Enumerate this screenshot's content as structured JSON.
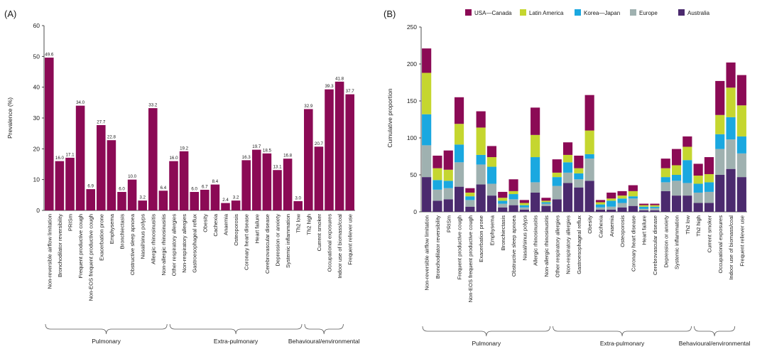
{
  "colors": {
    "bar_a": "#8b0a55",
    "usa_canada": "#8b0a55",
    "latin_america": "#c5d62f",
    "korea_japan": "#1aa8e0",
    "europe": "#9fb1b0",
    "australia": "#4b2a6e",
    "axis": "#222222"
  },
  "groups": [
    {
      "label": "Pulmonary",
      "from": 0,
      "to": 11
    },
    {
      "label": "Extra-pulmonary",
      "from": 12,
      "to": 24
    },
    {
      "label": "Behavioural/environmental",
      "from": 25,
      "to": 28
    }
  ],
  "chart_data": [
    {
      "panel": "(A)",
      "type": "bar",
      "ylabel": "Prevalence (%)",
      "ylim": [
        0,
        60
      ],
      "yticks": [
        0,
        10,
        20,
        30,
        40,
        50,
        60
      ],
      "grid": false,
      "categories": [
        "Non-reversible airflow limitation",
        "Bronchodilator reversibility",
        "PRISm",
        "Frequent productive cough",
        "Non-EOS frequent productive cough",
        "Exacerbation prone",
        "Emphysema",
        "Bronchiectasis",
        "Obstructive sleep apnoea",
        "Nasal/sinus polyps",
        "Allergic rhinosinusitis",
        "Non-allergic rhinosinusitis",
        "Other respiratory allergies",
        "Non-respiratory allergies",
        "Gastroesophageal reflux",
        "Obesity",
        "Cachexia",
        "Anaemia",
        "Osteoporosis",
        "Coronary heart disease",
        "Heart failure",
        "Cerebrovascular disease",
        "Depression or anxiety",
        "Systemic inflammation",
        "Th2 low",
        "Th2 high",
        "Current smoker",
        "Occupational exposures",
        "Indoor use of biomass/coal",
        "Frequent reliever use"
      ],
      "values": [
        49.6,
        16.0,
        17.1,
        34.0,
        6.9,
        27.7,
        22.8,
        6.0,
        10.0,
        3.2,
        33.2,
        6.4,
        16.0,
        19.2,
        6.0,
        6.7,
        8.4,
        2.4,
        3.2,
        16.3,
        19.7,
        18.5,
        13.1,
        16.8,
        3.0,
        32.9,
        20.7,
        39.3,
        41.8,
        37.7
      ],
      "labels": [
        "49.6",
        "16.0",
        "17.1",
        "34.0",
        "6.9",
        "27.7",
        "22.8",
        "6.0",
        "10.0",
        "3.2",
        "33.2",
        "6.4",
        "16.0",
        "19.2",
        "6.0",
        "6.7",
        "8.4",
        "2.4",
        "3.2",
        "16.3",
        "19.7",
        "18.5",
        "13.1",
        "16.8",
        "3.0",
        "32.9",
        "20.7",
        "39.3",
        "41.8",
        "37.7"
      ]
    },
    {
      "panel": "(B)",
      "type": "bar",
      "stacked": true,
      "ylabel": "Cumulative proportion",
      "ylim": [
        0,
        250
      ],
      "yticks": [
        0,
        50,
        100,
        150,
        200,
        250
      ],
      "grid": false,
      "legend_position": "top",
      "categories": [
        "Non-reversible airflow limitation",
        "Bronchodilator reversibility",
        "PRISm",
        "Frequent productive cough",
        "Non-EOS frequent productive cough",
        "Exacerbation prone",
        "Emphysema",
        "Bronchiectasis",
        "Obstructive sleep apnoea",
        "Nasal/sinus polyps",
        "Allergic rhinosinusitis",
        "Non-allergic rhinosinusitis",
        "Other respiratory allergies",
        "Non-respiratory allergies",
        "Gastroesophageal reflux",
        "Obesity",
        "Cachexia",
        "Anaemia",
        "Osteoporosis",
        "Coronary heart disease",
        "Heart failure",
        "Cerebrovascular disease",
        "Depression or anxiety",
        "Systemic inflammation",
        "Th2 low",
        "Th2 high",
        "Current smoker",
        "Occupational exposures",
        "Indoor use of biomass/coal",
        "Frequent reliever use"
      ],
      "series": [
        {
          "name": "Australia",
          "color_key": "australia",
          "values": [
            47,
            15,
            17,
            34,
            7,
            37,
            22,
            6,
            9,
            3,
            26,
            8,
            17,
            39,
            33,
            42,
            3,
            3,
            6,
            8,
            2,
            2,
            28,
            22,
            22,
            12,
            12,
            50,
            58,
            47
          ]
        },
        {
          "name": "Europe",
          "color_key": "europe",
          "values": [
            43,
            15,
            15,
            33,
            9,
            27,
            16,
            5,
            8,
            3,
            14,
            3,
            18,
            14,
            11,
            30,
            3,
            4,
            6,
            10,
            2,
            3,
            12,
            20,
            17,
            14,
            15,
            35,
            40,
            32
          ]
        },
        {
          "name": "Korea—Japan",
          "color_key": "korea_japan",
          "values": [
            42,
            13,
            10,
            24,
            5,
            13,
            23,
            4,
            7,
            3,
            34,
            2,
            12,
            14,
            8,
            6,
            4,
            8,
            6,
            3,
            3,
            2,
            7,
            8,
            31,
            12,
            13,
            20,
            30,
            23
          ]
        },
        {
          "name": "Latin America",
          "color_key": "latin_america",
          "values": [
            56,
            16,
            15,
            28,
            5,
            37,
            13,
            4,
            4,
            3,
            30,
            2,
            6,
            10,
            7,
            32,
            3,
            3,
            4,
            7,
            2,
            2,
            12,
            13,
            18,
            11,
            11,
            26,
            40,
            42
          ]
        },
        {
          "name": "USA—Canada",
          "color_key": "usa_canada",
          "values": [
            33,
            17,
            26,
            36,
            6,
            22,
            15,
            8,
            16,
            4,
            37,
            4,
            18,
            17,
            17,
            48,
            3,
            8,
            6,
            8,
            2,
            2,
            13,
            22,
            14,
            16,
            23,
            46,
            34,
            41
          ]
        }
      ],
      "legend_order": [
        "USA—Canada",
        "Latin America",
        "Korea—Japan",
        "Europe",
        "Australia"
      ]
    }
  ]
}
